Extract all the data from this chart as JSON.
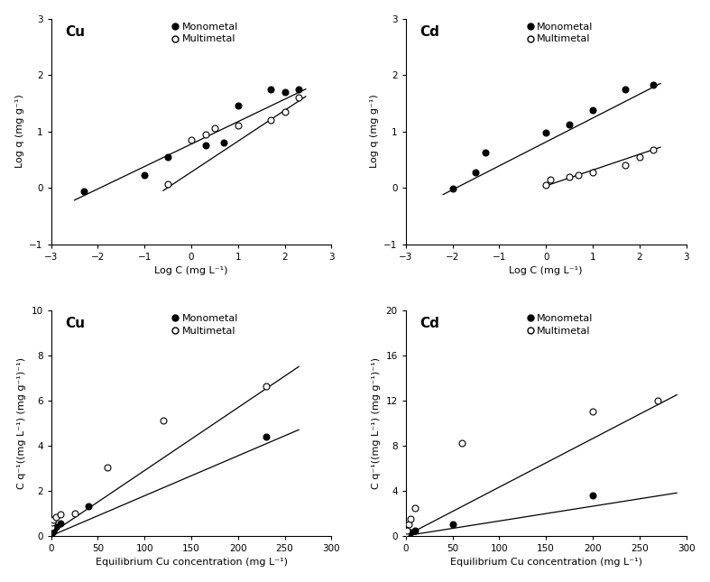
{
  "cu_freundlich": {
    "mono_x": [
      -2.3,
      -1.0,
      -0.5,
      0.3,
      0.7,
      1.0,
      1.7,
      2.0,
      2.3
    ],
    "mono_y": [
      -0.07,
      0.22,
      0.55,
      0.75,
      0.8,
      1.45,
      1.75,
      1.7,
      1.75
    ],
    "multi_x": [
      -0.5,
      0.0,
      0.3,
      0.5,
      1.0,
      1.7,
      2.0,
      2.3
    ],
    "multi_y": [
      0.07,
      0.85,
      0.95,
      1.05,
      1.1,
      1.2,
      1.35,
      1.6
    ],
    "mono_line_x": [
      -2.5,
      2.45
    ],
    "mono_line_y": [
      -0.22,
      1.75
    ],
    "multi_line_x": [
      -0.6,
      2.45
    ],
    "multi_line_y": [
      -0.05,
      1.62
    ],
    "title": "Cu",
    "xlabel": "Log C (mg L⁻¹)",
    "ylabel": "Log q (mg g⁻¹)",
    "xlim": [
      -3,
      3
    ],
    "ylim": [
      -1,
      3
    ],
    "xticks": [
      -3,
      -2,
      -1,
      0,
      1,
      2,
      3
    ],
    "yticks": [
      -1,
      0,
      1,
      2,
      3
    ]
  },
  "cd_freundlich": {
    "mono_x": [
      -2.0,
      -1.5,
      -1.3,
      0.0,
      0.5,
      1.0,
      1.7,
      2.3
    ],
    "mono_y": [
      -0.02,
      0.28,
      0.62,
      0.97,
      1.12,
      1.38,
      1.75,
      1.82
    ],
    "multi_x": [
      0.0,
      0.1,
      0.5,
      0.7,
      1.0,
      1.7,
      2.0,
      2.3
    ],
    "multi_y": [
      0.05,
      0.15,
      0.2,
      0.22,
      0.28,
      0.4,
      0.55,
      0.68
    ],
    "mono_line_x": [
      -2.2,
      2.45
    ],
    "mono_line_y": [
      -0.12,
      1.85
    ],
    "multi_line_x": [
      -0.05,
      2.45
    ],
    "multi_line_y": [
      0.02,
      0.72
    ],
    "title": "Cd",
    "xlabel": "Log C (mg L⁻¹)",
    "ylabel": "Log q (mg g⁻¹)",
    "xlim": [
      -3,
      3
    ],
    "ylim": [
      -1,
      3
    ],
    "xticks": [
      -3,
      -2,
      -1,
      0,
      1,
      2,
      3
    ],
    "yticks": [
      -1,
      0,
      1,
      2,
      3
    ]
  },
  "cu_langmuir": {
    "mono_x": [
      0.5,
      1.0,
      2.0,
      3.0,
      5.0,
      10.0,
      40.0,
      230.0
    ],
    "mono_y": [
      0.1,
      0.15,
      0.2,
      0.3,
      0.4,
      0.55,
      1.3,
      4.4
    ],
    "multi_x": [
      0.5,
      1.0,
      2.0,
      5.0,
      10.0,
      25.0,
      60.0,
      120.0,
      230.0
    ],
    "multi_y": [
      0.4,
      0.6,
      0.7,
      0.85,
      0.95,
      1.0,
      3.05,
      5.1,
      6.65
    ],
    "mono_line_x": [
      0,
      265
    ],
    "mono_line_y": [
      0.0,
      4.7
    ],
    "multi_line_x": [
      0,
      265
    ],
    "multi_line_y": [
      0.1,
      7.5
    ],
    "title": "Cu",
    "xlabel": "Equilibrium Cu concentration (mg L⁻¹)",
    "ylabel": "C q⁻¹((mg L⁻¹) (mg g⁻¹)⁻¹)",
    "xlim": [
      0,
      300
    ],
    "ylim": [
      0,
      10
    ],
    "xticks": [
      0,
      50,
      100,
      150,
      200,
      250,
      300
    ],
    "yticks": [
      0,
      2,
      4,
      6,
      8,
      10
    ]
  },
  "cd_langmuir": {
    "mono_x": [
      0.5,
      1.0,
      3.0,
      5.0,
      10.0,
      50.0,
      200.0
    ],
    "mono_y": [
      0.05,
      0.1,
      0.2,
      0.3,
      0.5,
      1.0,
      3.6
    ],
    "multi_x": [
      0.5,
      1.0,
      3.0,
      5.0,
      10.0,
      60.0,
      200.0,
      270.0
    ],
    "multi_y": [
      0.2,
      0.5,
      1.0,
      1.5,
      2.5,
      8.2,
      11.0,
      12.0
    ],
    "mono_line_x": [
      0,
      290
    ],
    "mono_line_y": [
      0.0,
      3.8
    ],
    "multi_line_x": [
      0,
      290
    ],
    "multi_line_y": [
      0.0,
      12.5
    ],
    "title": "Cd",
    "xlabel": "Equilibrium Cu concentration (mg L⁻¹)",
    "ylabel": "C q⁻¹((mg L⁻¹) (mg g⁻¹)⁻¹)",
    "xlim": [
      0,
      300
    ],
    "ylim": [
      0,
      20
    ],
    "xticks": [
      0,
      50,
      100,
      150,
      200,
      250,
      300
    ],
    "yticks": [
      0,
      4,
      8,
      12,
      16,
      20
    ]
  },
  "legend_labels": [
    "Monometal",
    "Multimetal"
  ],
  "color_mono": "black",
  "color_multi": "black",
  "line_color": "black",
  "fontsize_label": 8,
  "fontsize_tick": 7.5,
  "fontsize_title": 11,
  "fontsize_legend": 8,
  "markersize": 5
}
